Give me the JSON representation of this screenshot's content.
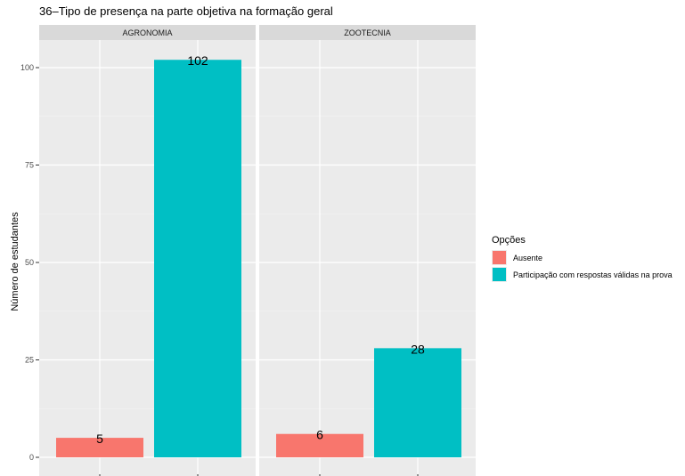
{
  "chart_data": {
    "type": "bar",
    "title": "36–Tipo de presença na parte objetiva na formação geral",
    "xlabel": "",
    "ylabel": "Número de estudantes",
    "ylim": [
      0,
      105
    ],
    "yticks": [
      0,
      25,
      50,
      75,
      100
    ],
    "grid": true,
    "legend": {
      "title": "Opções",
      "position": "right",
      "entries": [
        "Ausente",
        "Participação com respostas válidas na prova"
      ]
    },
    "categories": [
      "Ausente",
      "Participação com respostas válidas na prova"
    ],
    "colors": [
      "#F8766D",
      "#00BFC4"
    ],
    "panel_background": "#EBEBEB",
    "strip_background": "#D9D9D9",
    "facets": [
      {
        "name": "AGRONOMIA",
        "values": [
          5,
          102
        ]
      },
      {
        "name": "ZOOTECNIA",
        "values": [
          6,
          28
        ]
      }
    ]
  }
}
